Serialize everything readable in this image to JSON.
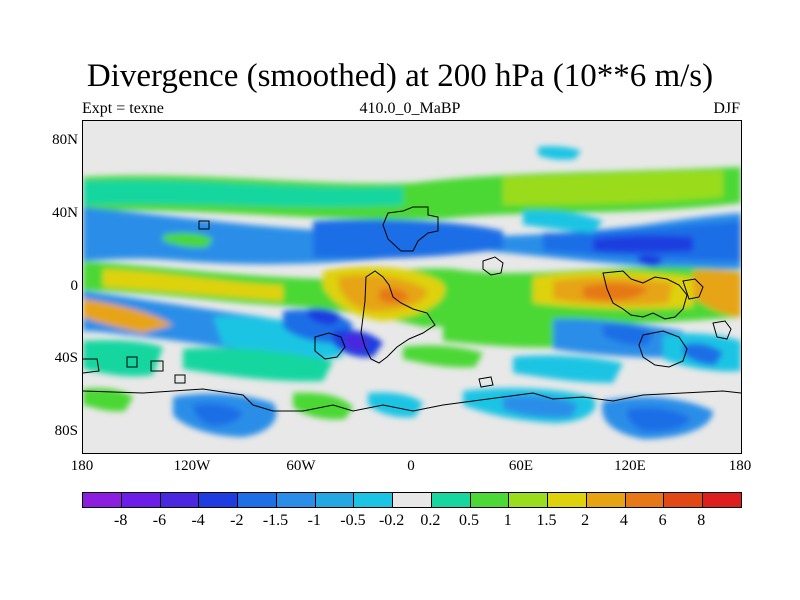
{
  "title": "Divergence (smoothed) at 200 hPa (10**6 m/s)",
  "subtitle_left": "Expt = texne",
  "subtitle_center": "410.0_0_MaBP",
  "subtitle_right": "DJF",
  "lat_ticks": [
    "80N",
    "40N",
    "0",
    "40S",
    "80S"
  ],
  "lon_ticks": [
    "180",
    "120W",
    "60W",
    "0",
    "60E",
    "120E",
    "180"
  ],
  "colorbar": {
    "colors": [
      "#8c1ee0",
      "#6d1ee6",
      "#4b28e0",
      "#1f3ce0",
      "#1e6ee6",
      "#2a8ee8",
      "#24a8e4",
      "#1cc4e4",
      "#e8e8e8",
      "#18d6a0",
      "#4cd836",
      "#9adc1e",
      "#ded20c",
      "#e6a412",
      "#e67818",
      "#e04814",
      "#dc1e1e"
    ],
    "labels": [
      "-8",
      "-6",
      "-4",
      "-2",
      "-1.5",
      "-1",
      "-0.5",
      "-0.2",
      "0.2",
      "0.5",
      "1",
      "1.5",
      "2",
      "4",
      "6",
      "8"
    ]
  }
}
